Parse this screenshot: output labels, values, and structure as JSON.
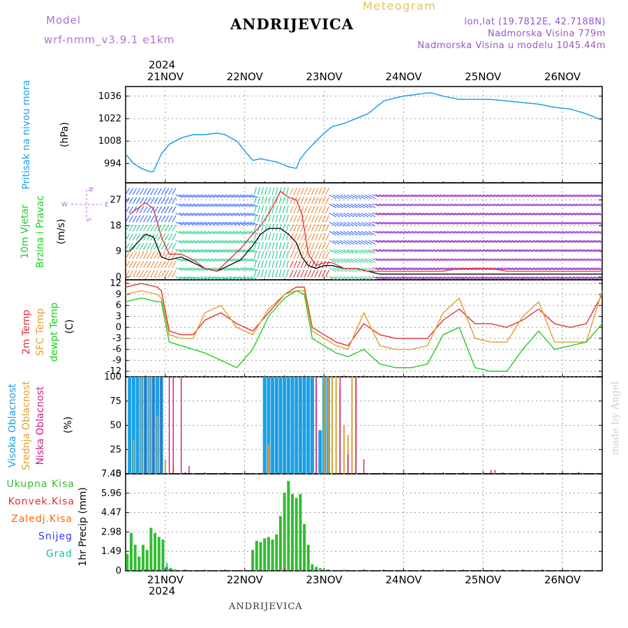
{
  "header": {
    "model_label": "Model",
    "model_name": "wrf-nmm_v3.9.1  e1km",
    "product": "Meteogram",
    "location": "ANDRIJEVICA",
    "coords": "lon,lat (19.7812E, 42.7188N)",
    "altitude": "Nadmorska Visina 779m",
    "model_altitude": "Nadmorska Visina u modelu 1045.44m"
  },
  "top_axis": {
    "year": "2024",
    "dates": [
      "21NOV",
      "22NOV",
      "23NOV",
      "24NOV",
      "25NOV",
      "26NOV"
    ]
  },
  "bottom_axis": {
    "year": "2024",
    "dates": [
      "21NOV",
      "22NOV",
      "23NOV",
      "24NOV",
      "25NOV",
      "26NOV"
    ]
  },
  "footer": {
    "location": "ANDRIJEVICA",
    "credit": "made by Angel"
  },
  "colors": {
    "pressure": "#1aa0e6",
    "wind_speed": "#000000",
    "wind_gust": "#e03030",
    "temp2m": "#e03030",
    "sfctemp": "#e0a030",
    "dewpt": "#22cc22",
    "high_cloud": "#1aa0e6",
    "mid_cloud": "#e0a030",
    "low_cloud": "#cc2288",
    "precip_total": "#33bb33",
    "precip_conv": "#e03030",
    "precip_frz": "#ff6600",
    "snow": "#3333ff",
    "hail": "#22bbaa",
    "label_purple": "#b070d0"
  },
  "chart_data": [
    {
      "type": "line",
      "title": "",
      "ylabel": "Pritisak na nivou mora",
      "unit": "(hPa)",
      "ylim": [
        982,
        1042
      ],
      "yticks": [
        994,
        1008,
        1022,
        1036
      ],
      "xlim": [
        0.5,
        6.5
      ],
      "grid": true,
      "series": [
        {
          "name": "Pritisak na nivou mora",
          "x": [
            0.5,
            0.6,
            0.7,
            0.8,
            0.85,
            0.95,
            1.05,
            1.2,
            1.35,
            1.5,
            1.65,
            1.75,
            1.9,
            2.1,
            2.2,
            2.3,
            2.4,
            2.55,
            2.65,
            2.7,
            2.8,
            2.9,
            3.0,
            3.1,
            3.25,
            3.4,
            3.55,
            3.65,
            3.75,
            3.9,
            4.0,
            4.15,
            4.3,
            4.35,
            4.5,
            4.7,
            4.9,
            5.1,
            5.3,
            5.5,
            5.7,
            5.9,
            6.1,
            6.3,
            6.5
          ],
          "y": [
            1000,
            994,
            991,
            989,
            989,
            1000,
            1006,
            1010,
            1012,
            1012,
            1013,
            1012,
            1008,
            996,
            997,
            996,
            995,
            992,
            991,
            997,
            1003,
            1008,
            1013,
            1017,
            1019,
            1022,
            1025,
            1029,
            1033,
            1035,
            1036,
            1037,
            1038,
            1038,
            1036,
            1034,
            1034,
            1034,
            1033,
            1032,
            1031,
            1029,
            1028,
            1025,
            1021
          ]
        }
      ]
    },
    {
      "type": "line",
      "title": "",
      "ylabel": "10m Vjetar Brzina i Pravac",
      "unit": "(m/s)",
      "ylim": [
        -1,
        33
      ],
      "yticks": [
        0,
        9,
        18,
        27
      ],
      "xlim": [
        0.5,
        6.5
      ],
      "grid": true,
      "legend_glyph": {
        "n": "N",
        "s": "S",
        "w": "W",
        "e": "E"
      },
      "series": [
        {
          "name": "speed",
          "x": [
            0.55,
            0.65,
            0.75,
            0.85,
            0.95,
            1.05,
            1.2,
            1.35,
            1.5,
            1.65,
            1.8,
            1.95,
            2.1,
            2.2,
            2.3,
            2.45,
            2.55,
            2.65,
            2.72,
            2.8,
            2.9,
            3.0,
            3.1,
            3.25,
            3.4,
            3.55,
            3.7,
            3.9,
            4.1,
            4.3,
            4.5,
            4.7,
            4.9,
            5.1,
            5.3,
            5.5,
            5.7,
            5.9,
            6.1,
            6.3,
            6.5
          ],
          "y": [
            9,
            12,
            15,
            14,
            7,
            6,
            7,
            5,
            3,
            2,
            4,
            6,
            11,
            15,
            17,
            17,
            15,
            12,
            7,
            4,
            3,
            4,
            4,
            3,
            3,
            2,
            1,
            1,
            1,
            1,
            1,
            1,
            1,
            1,
            1,
            1,
            1,
            1,
            1,
            1,
            1
          ]
        },
        {
          "name": "gust",
          "x": [
            0.55,
            0.65,
            0.75,
            0.85,
            0.95,
            1.05,
            1.2,
            1.35,
            1.5,
            1.65,
            1.8,
            1.95,
            2.1,
            2.2,
            2.3,
            2.45,
            2.55,
            2.65,
            2.72,
            2.8,
            2.9,
            3.0,
            3.1,
            3.25,
            3.4,
            3.55,
            3.7,
            3.9,
            4.1,
            4.3,
            4.5,
            4.7,
            4.9,
            5.1,
            5.3,
            5.5,
            5.7,
            5.9,
            6.1,
            6.3,
            6.5
          ],
          "y": [
            22,
            24,
            26,
            24,
            14,
            8,
            8,
            6,
            3,
            2,
            6,
            10,
            15,
            18,
            22,
            30,
            28,
            27,
            22,
            8,
            4,
            5,
            5,
            3,
            3,
            2,
            2,
            2,
            2,
            2,
            2,
            3,
            3,
            3,
            2,
            2,
            2,
            2,
            2,
            2,
            2
          ]
        }
      ]
    },
    {
      "type": "line",
      "title": "",
      "ylabels": [
        "2m Temp",
        "SFC Temp",
        "dewpt Temp"
      ],
      "unit": "(C)",
      "ylim": [
        -13.5,
        13
      ],
      "yticks": [
        -12,
        -9,
        -6,
        -3,
        0,
        3,
        6,
        9,
        12
      ],
      "xlim": [
        0.5,
        6.5
      ],
      "grid": true,
      "series": [
        {
          "name": "2m Temp",
          "x": [
            0.5,
            0.7,
            0.9,
            0.95,
            1.05,
            1.2,
            1.35,
            1.5,
            1.7,
            1.9,
            2.1,
            2.3,
            2.5,
            2.65,
            2.75,
            2.85,
            3.0,
            3.15,
            3.3,
            3.5,
            3.7,
            3.9,
            4.1,
            4.3,
            4.5,
            4.7,
            4.9,
            5.1,
            5.3,
            5.5,
            5.7,
            5.9,
            6.1,
            6.3,
            6.5
          ],
          "y": [
            11,
            12,
            11,
            10,
            -1,
            -2,
            -2,
            2,
            4,
            1,
            -1,
            4,
            9,
            11,
            11,
            0,
            -2,
            -4,
            -5,
            1,
            -2,
            -3,
            -3,
            -3,
            2,
            5,
            1,
            1,
            0,
            2,
            5,
            1,
            0,
            1,
            9
          ]
        },
        {
          "name": "SFC Temp",
          "x": [
            0.5,
            0.7,
            0.9,
            0.95,
            1.05,
            1.2,
            1.35,
            1.5,
            1.7,
            1.9,
            2.1,
            2.3,
            2.5,
            2.65,
            2.75,
            2.85,
            3.0,
            3.15,
            3.3,
            3.5,
            3.7,
            3.9,
            4.1,
            4.3,
            4.5,
            4.7,
            4.9,
            5.1,
            5.3,
            5.5,
            5.7,
            5.9,
            6.1,
            6.3,
            6.5
          ],
          "y": [
            9,
            10,
            9,
            8,
            -2,
            -3,
            -3,
            4,
            6,
            0,
            -2,
            5,
            9,
            10,
            10,
            -1,
            -3,
            -5,
            -6,
            4,
            -5,
            -6,
            -6,
            -5,
            4,
            8,
            -3,
            -4,
            -4,
            3,
            7,
            -4,
            -4,
            -4,
            10
          ]
        },
        {
          "name": "dewpt Temp",
          "x": [
            0.5,
            0.7,
            0.9,
            0.95,
            1.05,
            1.2,
            1.35,
            1.5,
            1.7,
            1.9,
            2.1,
            2.3,
            2.5,
            2.65,
            2.75,
            2.85,
            3.0,
            3.15,
            3.3,
            3.5,
            3.7,
            3.9,
            4.1,
            4.3,
            4.5,
            4.7,
            4.9,
            5.1,
            5.3,
            5.5,
            5.7,
            5.9,
            6.1,
            6.3,
            6.5
          ],
          "y": [
            7,
            8,
            7,
            7,
            -4,
            -5,
            -6,
            -7,
            -9,
            -11,
            -6,
            3,
            8,
            10,
            9,
            -3,
            -5,
            -7,
            -8,
            -6,
            -10,
            -11,
            -11,
            -10,
            -2,
            0,
            -11,
            -12,
            -12,
            -6,
            -1,
            -6,
            -5,
            -4,
            1
          ]
        }
      ]
    },
    {
      "type": "bar",
      "title": "",
      "ylabels": [
        "Visoka Oblacnost",
        "Srednja Oblacnost",
        "Niska Oblacnost"
      ],
      "unit": "(%)",
      "ylim": [
        0,
        100
      ],
      "yticks": [
        0,
        25,
        50,
        75,
        100
      ],
      "xlim": [
        0.5,
        6.5
      ],
      "grid": true,
      "series": [
        {
          "name": "Visoka Oblacnost",
          "x": [
            0.55,
            0.6,
            0.65,
            0.7,
            0.75,
            0.8,
            0.85,
            0.9,
            0.95,
            2.25,
            2.3,
            2.35,
            2.4,
            2.45,
            2.5,
            2.55,
            2.6,
            2.65,
            2.7,
            2.75,
            2.8,
            2.85,
            2.95,
            3.0,
            3.05
          ],
          "y": [
            100,
            100,
            100,
            100,
            100,
            100,
            100,
            100,
            100,
            100,
            100,
            100,
            100,
            100,
            100,
            100,
            100,
            100,
            100,
            100,
            100,
            100,
            45,
            100,
            100
          ]
        },
        {
          "name": "Srednja Oblacnost",
          "x": [
            0.6,
            0.7,
            0.8,
            0.9,
            1.0,
            1.1,
            2.3,
            2.9,
            3.0,
            3.05,
            3.1,
            3.15,
            3.2,
            3.25,
            3.3,
            3.35,
            3.4
          ],
          "y": [
            35,
            100,
            100,
            60,
            15,
            8,
            30,
            100,
            100,
            100,
            100,
            100,
            90,
            50,
            40,
            100,
            100
          ]
        },
        {
          "name": "Niska Oblacnost",
          "x": [
            0.75,
            0.85,
            0.95,
            1.05,
            1.1,
            1.2,
            1.3,
            2.9,
            3.2,
            3.3,
            3.4,
            3.5,
            4.0,
            5.1,
            5.15,
            6.2
          ],
          "y": [
            100,
            100,
            100,
            100,
            100,
            100,
            8,
            100,
            100,
            20,
            100,
            15,
            4,
            4,
            4,
            2
          ]
        }
      ]
    },
    {
      "type": "bar",
      "title": "",
      "ylabel": "1hr Precip",
      "unit": "(mm)",
      "ylim": [
        0,
        7.45
      ],
      "yticks": [
        0,
        1.49,
        2.98,
        4.47,
        5.96,
        7.45
      ],
      "xlim": [
        0.5,
        6.5
      ],
      "grid": true,
      "legend": [
        "Ukupna Kisa",
        "Konvek.Kisa",
        "Zaledj.Kisa",
        "Snijeg",
        "Grad"
      ],
      "series": [
        {
          "name": "Ukupna Kisa",
          "x": [
            0.52,
            0.57,
            0.62,
            0.67,
            0.72,
            0.77,
            0.82,
            0.87,
            0.92,
            0.97,
            1.02,
            1.07,
            1.12,
            2.1,
            2.15,
            2.2,
            2.25,
            2.3,
            2.35,
            2.4,
            2.45,
            2.5,
            2.55,
            2.6,
            2.65,
            2.7,
            2.75,
            2.8,
            2.85,
            2.9,
            2.95,
            3.0,
            3.05
          ],
          "y": [
            1.3,
            2.9,
            2.0,
            1.1,
            2.0,
            1.6,
            3.3,
            2.9,
            2.6,
            2.4,
            0.3,
            0.2,
            0.1,
            1.6,
            2.3,
            2.2,
            2.5,
            2.6,
            2.4,
            2.8,
            4.2,
            6.0,
            6.9,
            5.9,
            5.6,
            5.9,
            3.6,
            2.0,
            0.5,
            0.3,
            0.2,
            0.1,
            0.1
          ]
        },
        {
          "name": "Konvek.Kisa",
          "x": [
            1.0,
            2.5
          ],
          "y": [
            0.2,
            0.2
          ]
        },
        {
          "name": "Zaledj.Kisa",
          "x": [
            0.85
          ],
          "y": [
            0.1
          ]
        },
        {
          "name": "Snijeg",
          "x": [
            1.05
          ],
          "y": [
            0.1
          ]
        },
        {
          "name": "Grad",
          "x": [
            1.02
          ],
          "y": [
            0.6
          ]
        }
      ]
    }
  ]
}
